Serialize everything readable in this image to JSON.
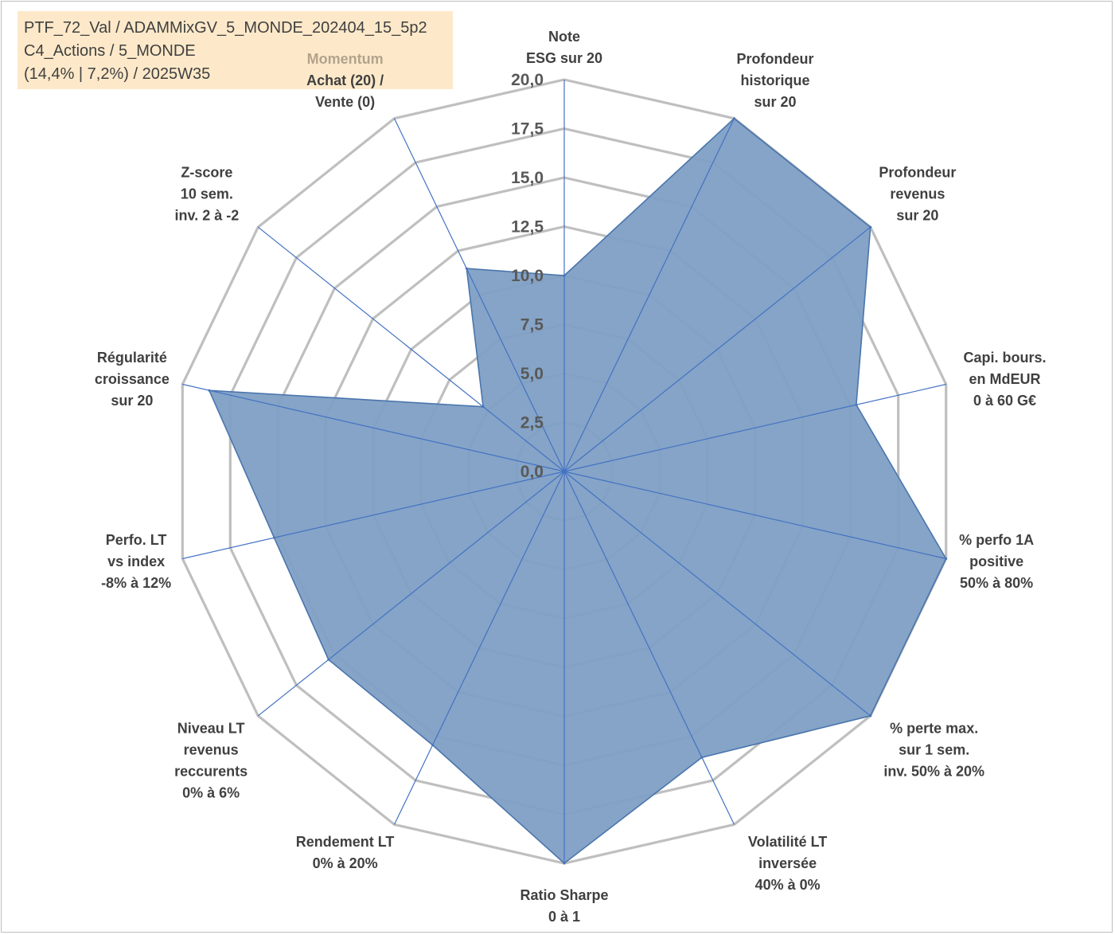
{
  "info": {
    "line1": "PTF_72_Val / ADAMMixGV_5_MONDE_202404_15_5p2",
    "line2": "C4_Actions / 5_MONDE",
    "line3": "(14,4% | 7,2%) / 2025W35"
  },
  "chart_data": {
    "type": "radar",
    "rlim": [
      0,
      20
    ],
    "ticks": [
      "0,0",
      "2,5",
      "5,0",
      "7,5",
      "10,0",
      "12,5",
      "15,0",
      "17,5",
      "20,0"
    ],
    "tick_values": [
      0,
      2.5,
      5,
      7.5,
      10,
      12.5,
      15,
      17.5,
      20
    ],
    "axes": [
      {
        "label_lines": [
          "Note",
          "ESG sur 20"
        ]
      },
      {
        "label_lines": [
          "Profondeur",
          "historique",
          "sur 20"
        ]
      },
      {
        "label_lines": [
          "Profondeur",
          "revenus",
          "sur 20"
        ]
      },
      {
        "label_lines": [
          "Capi. bours.",
          "en MdEUR",
          "0 à 60 G€"
        ]
      },
      {
        "label_lines": [
          "% perfo 1A",
          "positive",
          "50% à 80%"
        ]
      },
      {
        "label_lines": [
          "% perte max.",
          "sur 1 sem.",
          "inv. 50% à 20%"
        ]
      },
      {
        "label_lines": [
          "Volatilité LT",
          "inversée",
          "40% à 0%"
        ]
      },
      {
        "label_lines": [
          "Ratio Sharpe",
          "0 à 1"
        ]
      },
      {
        "label_lines": [
          "Rendement LT",
          "0% à 20%"
        ]
      },
      {
        "label_lines": [
          "Niveau LT",
          "revenus",
          "reccurents",
          "0% à 6%"
        ]
      },
      {
        "label_lines": [
          "Perfo. LT",
          "vs index",
          "-8% à 12%"
        ]
      },
      {
        "label_lines": [
          "Régularité",
          "croissance",
          "sur 20"
        ]
      },
      {
        "label_lines": [
          "Z-score",
          "10 sem.",
          "inv. 2 à -2"
        ]
      },
      {
        "label_lines": [
          "Momentum",
          "Achat (20) /",
          "Vente (0)"
        ],
        "highlight_first_line": true
      }
    ],
    "series": [
      {
        "values": [
          10,
          20,
          20,
          15.3,
          20,
          20,
          16.2,
          20,
          15.5,
          15.4,
          15.2,
          18.6,
          5.3,
          11.5
        ],
        "color": "#4a75ad"
      }
    ],
    "grid_color": "#bfbfbf",
    "spoke_color": "#4472c4",
    "fill_color": "#7e9fc4",
    "legend": "none"
  }
}
